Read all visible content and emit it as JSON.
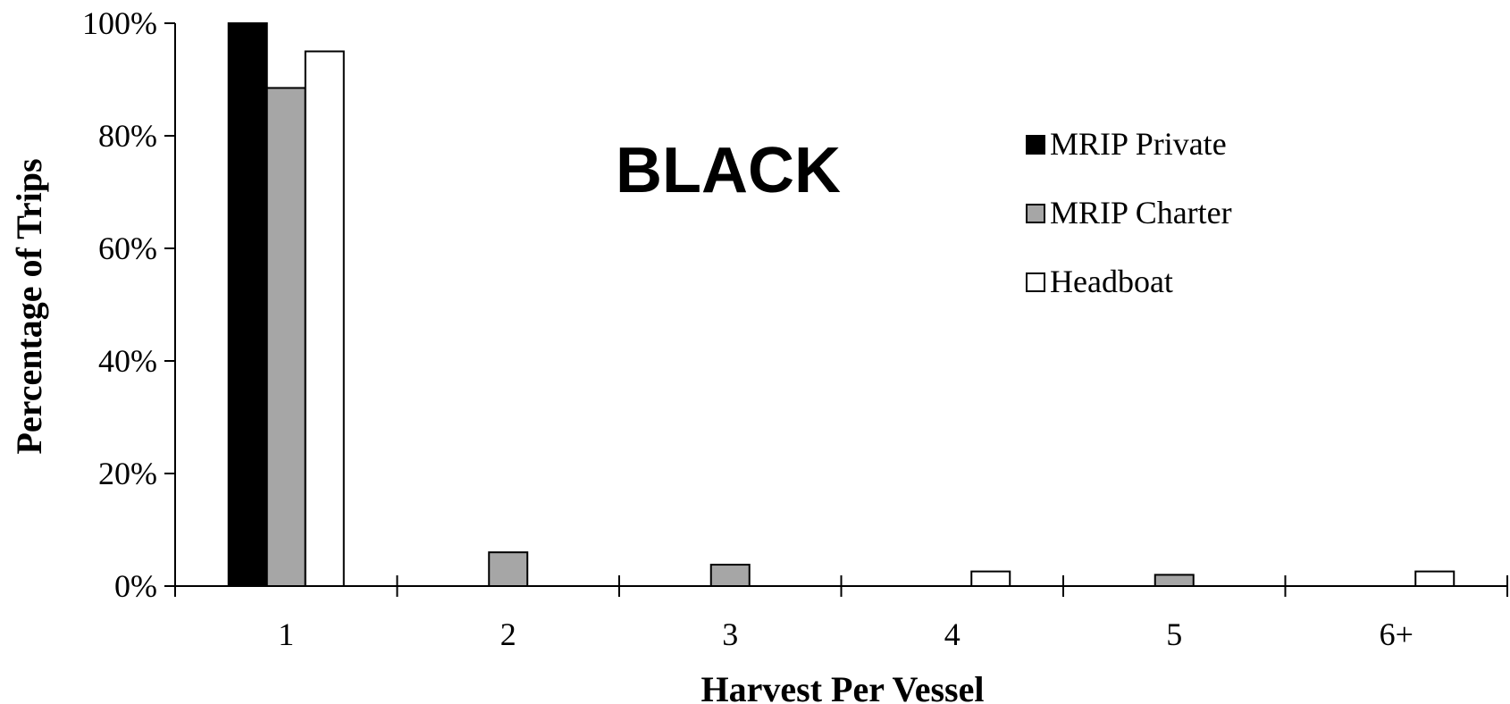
{
  "chart_data": {
    "type": "bar",
    "title": "BLACK",
    "xlabel": "Harvest Per Vessel",
    "ylabel": "Percentage of Trips",
    "categories": [
      "1",
      "2",
      "3",
      "4",
      "5",
      "6+"
    ],
    "ylim": [
      0,
      100
    ],
    "yticks": [
      "0%",
      "20%",
      "40%",
      "60%",
      "80%",
      "100%"
    ],
    "grid": false,
    "legend_position": "top-right",
    "series": [
      {
        "name": "MRIP Private",
        "color": "#000000",
        "values": [
          100,
          0,
          0,
          0,
          0,
          0
        ]
      },
      {
        "name": "MRIP Charter",
        "color": "#a6a6a6",
        "values": [
          88.5,
          6,
          3.8,
          0,
          2,
          0
        ]
      },
      {
        "name": "Headboat",
        "color": "#ffffff",
        "values": [
          95,
          0,
          0,
          2.6,
          0,
          2.6
        ]
      }
    ]
  }
}
